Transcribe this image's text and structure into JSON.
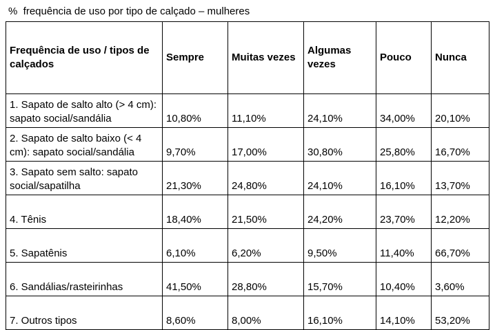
{
  "caption": "%  frequência de uso por tipo de calçado – mulheres",
  "table": {
    "headers": [
      "Frequência de uso / tipos de calçados",
      "Sempre",
      "Muitas vezes",
      "Algumas vezes",
      "Pouco",
      "Nunca"
    ],
    "rows": [
      [
        "1. Sapato de salto alto (> 4 cm): sapato social/sandália",
        "10,80%",
        "11,10%",
        "24,10%",
        "34,00%",
        "20,10%"
      ],
      [
        "2. Sapato de salto baixo (< 4 cm): sapato social/sandália",
        "9,70%",
        "17,00%",
        "30,80%",
        "25,80%",
        "16,70%"
      ],
      [
        "3. Sapato sem salto: sapato social/sapatilha",
        "21,30%",
        "24,80%",
        "24,10%",
        "16,10%",
        "13,70%"
      ],
      [
        "4. Tênis",
        "18,40%",
        "21,50%",
        "24,20%",
        "23,70%",
        "12,20%"
      ],
      [
        "5. Sapatênis",
        "6,10%",
        "6,20%",
        "9,50%",
        "11,40%",
        "66,70%"
      ],
      [
        "6. Sandálias/rasteirinhas",
        "41,50%",
        "28,80%",
        "15,70%",
        "10,40%",
        "3,60%"
      ],
      [
        "7. Outros tipos",
        "8,60%",
        "8,00%",
        "16,10%",
        "14,10%",
        "53,20%"
      ]
    ]
  }
}
